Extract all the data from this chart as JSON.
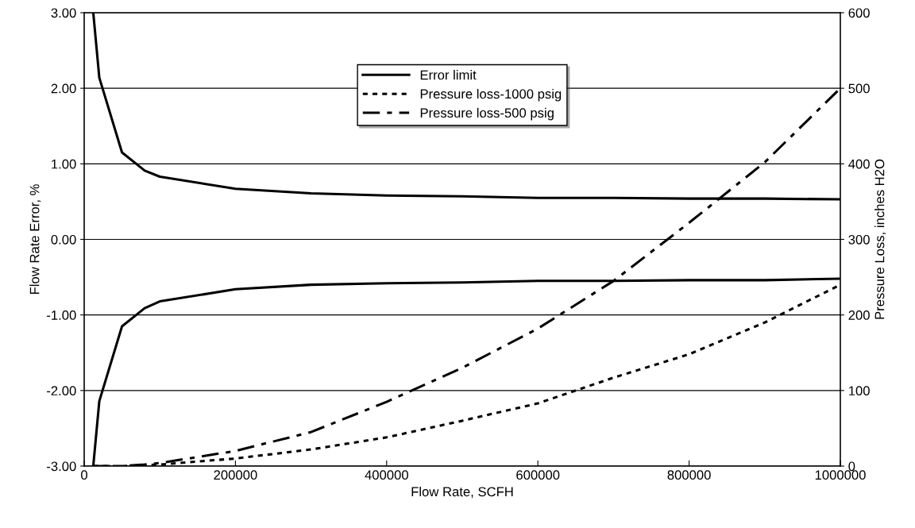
{
  "chart_data": {
    "type": "line",
    "xlabel": "Flow Rate, SCFH",
    "ylabel": "Flow Rate Error, %",
    "y2label": "Pressure Loss, inches H2O",
    "xlim": [
      0,
      1000000
    ],
    "xticks": [
      0,
      200000,
      400000,
      600000,
      800000,
      1000000
    ],
    "ylim": [
      -3,
      3
    ],
    "yticks": [
      {
        "value": -3,
        "label": "-3.00"
      },
      {
        "value": -2,
        "label": "-2.00"
      },
      {
        "value": -1,
        "label": "-1.00"
      },
      {
        "value": 0,
        "label": "0.00"
      },
      {
        "value": 1,
        "label": "1.00"
      },
      {
        "value": 2,
        "label": "2.00"
      },
      {
        "value": 3,
        "label": "3.00"
      }
    ],
    "y2lim": [
      0,
      600
    ],
    "y2ticks": [
      0,
      100,
      200,
      300,
      400,
      500,
      600
    ],
    "grid": "y",
    "legend": "top",
    "marker": "none",
    "series": [
      {
        "name": "Error limit",
        "color": "#000000",
        "line_style": "solid",
        "x": [
          12000,
          20000,
          50000,
          80000,
          100000,
          200000,
          300000,
          400000,
          500000,
          600000,
          700000,
          800000,
          900000,
          1000000
        ],
        "values": [
          3.0,
          2.14,
          1.15,
          0.91,
          0.83,
          0.67,
          0.61,
          0.58,
          0.57,
          0.55,
          0.55,
          0.54,
          0.54,
          0.53
        ]
      },
      {
        "color": "#000000",
        "line_style": "solid",
        "x": [
          12000,
          20000,
          50000,
          80000,
          100000,
          200000,
          300000,
          400000,
          500000,
          600000,
          700000,
          800000,
          900000,
          1000000
        ],
        "values": [
          -3.0,
          -2.14,
          -1.15,
          -0.91,
          -0.82,
          -0.66,
          -0.6,
          -0.58,
          -0.57,
          -0.55,
          -0.55,
          -0.54,
          -0.54,
          -0.52
        ]
      },
      {
        "name": "Pressure loss-1000 psig",
        "color": "#000000",
        "line_style": "dotted",
        "axis": "y2",
        "x": [
          12000,
          50000,
          80000,
          100000,
          200000,
          300000,
          400000,
          500000,
          600000,
          700000,
          800000,
          900000,
          1000000
        ],
        "values": [
          0,
          0,
          1,
          2,
          10,
          22,
          38,
          60,
          83,
          117,
          148,
          190,
          240
        ]
      },
      {
        "name": "Pressure loss-500 psig",
        "color": "#000000",
        "line_style": "dashdot",
        "axis": "y2",
        "x": [
          12000,
          50000,
          80000,
          100000,
          200000,
          300000,
          400000,
          500000,
          600000,
          700000,
          800000,
          900000,
          1000000
        ],
        "values": [
          0,
          0,
          2,
          4,
          20,
          45,
          85,
          130,
          182,
          245,
          322,
          402,
          500
        ]
      }
    ]
  }
}
